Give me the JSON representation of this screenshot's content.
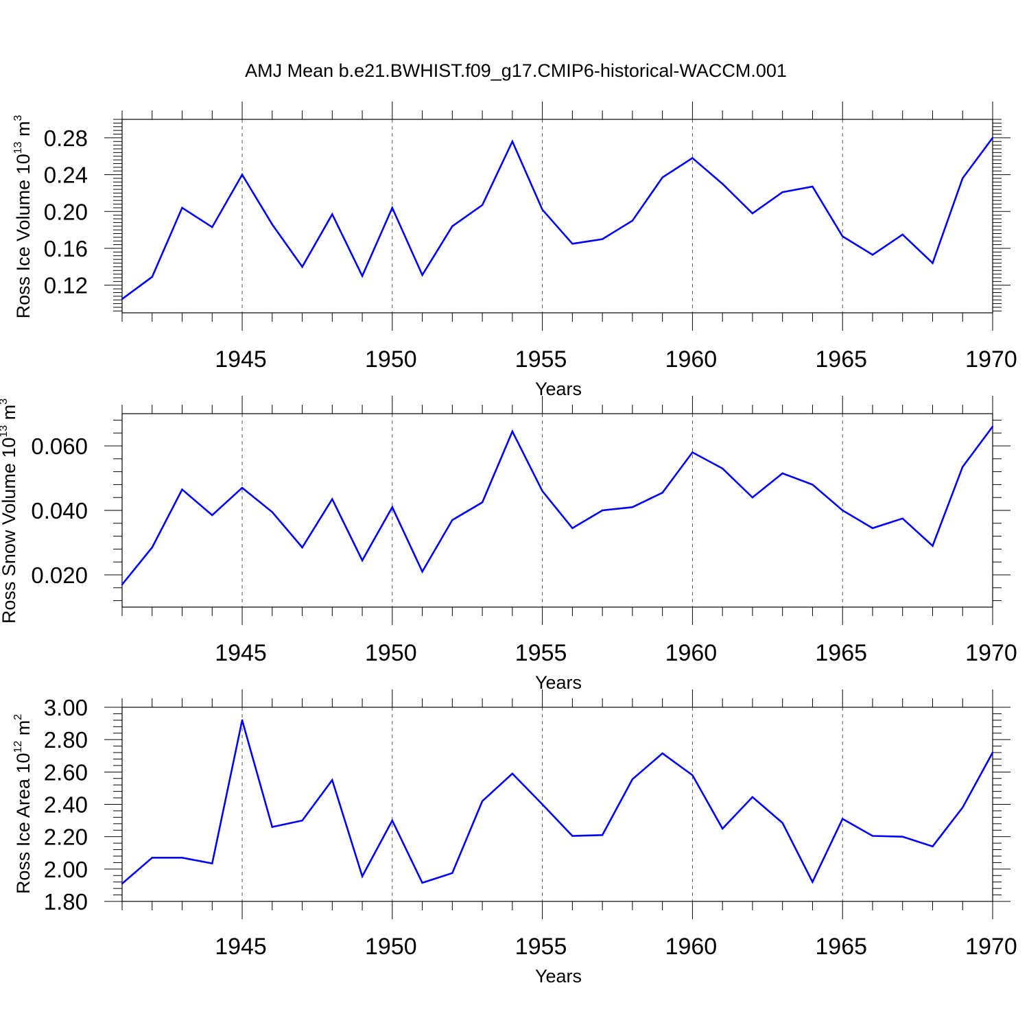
{
  "title": "AMJ Mean b.e21.BWHIST.f09_g17.CMIP6-historical-WACCM.001",
  "colors": {
    "line": "#0000ff",
    "grid": "#555555"
  },
  "chart_data": [
    {
      "type": "line",
      "ylabel": {
        "text": "Ross Ice Volume 10",
        "exp": "13",
        "unit": " m",
        "unit_exp": "3"
      },
      "xlabel": "Years",
      "xlim": [
        1941,
        1970
      ],
      "ylim": [
        0.09,
        0.3
      ],
      "xticks": [
        1945,
        1950,
        1955,
        1960,
        1965,
        1970
      ],
      "yticks": [
        0.12,
        0.16,
        0.2,
        0.24,
        0.28
      ],
      "ytick_labels": [
        "0.12",
        "0.16",
        "0.20",
        "0.24",
        "0.28"
      ],
      "grid": "vertical dashed at major x ticks",
      "series": [
        {
          "x": [
            1941,
            1942,
            1943,
            1944,
            1945,
            1946,
            1947,
            1948,
            1949,
            1950,
            1951,
            1952,
            1953,
            1954,
            1955,
            1956,
            1957,
            1958,
            1959,
            1960,
            1961,
            1962,
            1963,
            1964,
            1965,
            1966,
            1967,
            1968,
            1969,
            1970
          ],
          "values": [
            0.105,
            0.129,
            0.204,
            0.183,
            0.24,
            0.186,
            0.14,
            0.197,
            0.13,
            0.204,
            0.131,
            0.184,
            0.207,
            0.276,
            0.202,
            0.165,
            0.17,
            0.19,
            0.237,
            0.258,
            0.23,
            0.198,
            0.221,
            0.227,
            0.173,
            0.153,
            0.175,
            0.144,
            0.236,
            0.28
          ]
        }
      ]
    },
    {
      "type": "line",
      "ylabel": {
        "text": "Ross Snow Volume 10",
        "exp": "13",
        "unit": " m",
        "unit_exp": "3"
      },
      "xlabel": "Years",
      "xlim": [
        1941,
        1970
      ],
      "ylim": [
        0.01,
        0.07
      ],
      "xticks": [
        1945,
        1950,
        1955,
        1960,
        1965,
        1970
      ],
      "yticks": [
        0.02,
        0.04,
        0.06
      ],
      "ytick_labels": [
        "0.020",
        "0.040",
        "0.060"
      ],
      "grid": "vertical dashed at major x ticks",
      "series": [
        {
          "x": [
            1941,
            1942,
            1943,
            1944,
            1945,
            1946,
            1947,
            1948,
            1949,
            1950,
            1951,
            1952,
            1953,
            1954,
            1955,
            1956,
            1957,
            1958,
            1959,
            1960,
            1961,
            1962,
            1963,
            1964,
            1965,
            1966,
            1967,
            1968,
            1969,
            1970
          ],
          "values": [
            0.017,
            0.0285,
            0.0465,
            0.0385,
            0.047,
            0.0395,
            0.0285,
            0.0435,
            0.0245,
            0.041,
            0.021,
            0.037,
            0.0425,
            0.0645,
            0.046,
            0.0345,
            0.04,
            0.041,
            0.0455,
            0.058,
            0.053,
            0.044,
            0.0515,
            0.048,
            0.04,
            0.0345,
            0.0375,
            0.029,
            0.0535,
            0.066
          ]
        }
      ]
    },
    {
      "type": "line",
      "ylabel": {
        "text": "Ross Ice Area 10",
        "exp": "12",
        "unit": " m",
        "unit_exp": "2"
      },
      "xlabel": "Years",
      "xlim": [
        1941,
        1970
      ],
      "ylim": [
        1.8,
        3.0
      ],
      "xticks": [
        1945,
        1950,
        1955,
        1960,
        1965,
        1970
      ],
      "yticks": [
        1.8,
        2.0,
        2.2,
        2.4,
        2.6,
        2.8,
        3.0
      ],
      "ytick_labels": [
        "1.80",
        "2.00",
        "2.20",
        "2.40",
        "2.60",
        "2.80",
        "3.00"
      ],
      "grid": "vertical dashed at major x ticks",
      "series": [
        {
          "x": [
            1941,
            1942,
            1943,
            1944,
            1945,
            1946,
            1947,
            1948,
            1949,
            1950,
            1951,
            1952,
            1953,
            1954,
            1955,
            1956,
            1957,
            1958,
            1959,
            1960,
            1961,
            1962,
            1963,
            1964,
            1965,
            1966,
            1967,
            1968,
            1969,
            1970
          ],
          "values": [
            1.91,
            2.07,
            2.07,
            2.035,
            2.92,
            2.26,
            2.3,
            2.55,
            1.955,
            2.3,
            1.915,
            1.975,
            2.42,
            2.59,
            2.4,
            2.205,
            2.21,
            2.555,
            2.715,
            2.58,
            2.25,
            2.445,
            2.285,
            1.92,
            2.31,
            2.205,
            2.2,
            2.14,
            2.38,
            2.72
          ]
        }
      ]
    }
  ]
}
